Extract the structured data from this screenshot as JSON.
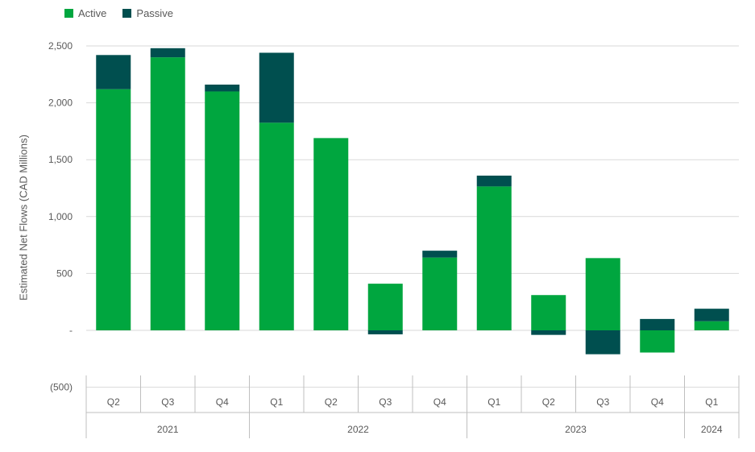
{
  "chart_data": {
    "type": "bar",
    "stacked": true,
    "ylabel": "Estimated Net Flows (CAD Millions)",
    "ylim": [
      -500,
      2500
    ],
    "yticks": [
      -500,
      0,
      500,
      1000,
      1500,
      2000,
      2500
    ],
    "ytick_labels": [
      "(500)",
      "-",
      "500",
      "1,000",
      "1,500",
      "2,000",
      "2,500"
    ],
    "grid": true,
    "legend_position": "top-left",
    "categories": [
      "Q2",
      "Q3",
      "Q4",
      "Q1",
      "Q2",
      "Q3",
      "Q4",
      "Q1",
      "Q2",
      "Q3",
      "Q4",
      "Q1"
    ],
    "groups": [
      {
        "label": "2021",
        "count": 3
      },
      {
        "label": "2022",
        "count": 4
      },
      {
        "label": "2023",
        "count": 4
      },
      {
        "label": "2024",
        "count": 1
      }
    ],
    "series": [
      {
        "name": "Active",
        "color": "#00a63f",
        "values": [
          2120,
          2400,
          2100,
          1825,
          1690,
          410,
          640,
          1265,
          310,
          635,
          -195,
          80
        ]
      },
      {
        "name": "Passive",
        "color": "#004f4f",
        "values": [
          300,
          80,
          60,
          615,
          0,
          -35,
          60,
          95,
          -40,
          -210,
          100,
          110
        ]
      }
    ]
  }
}
